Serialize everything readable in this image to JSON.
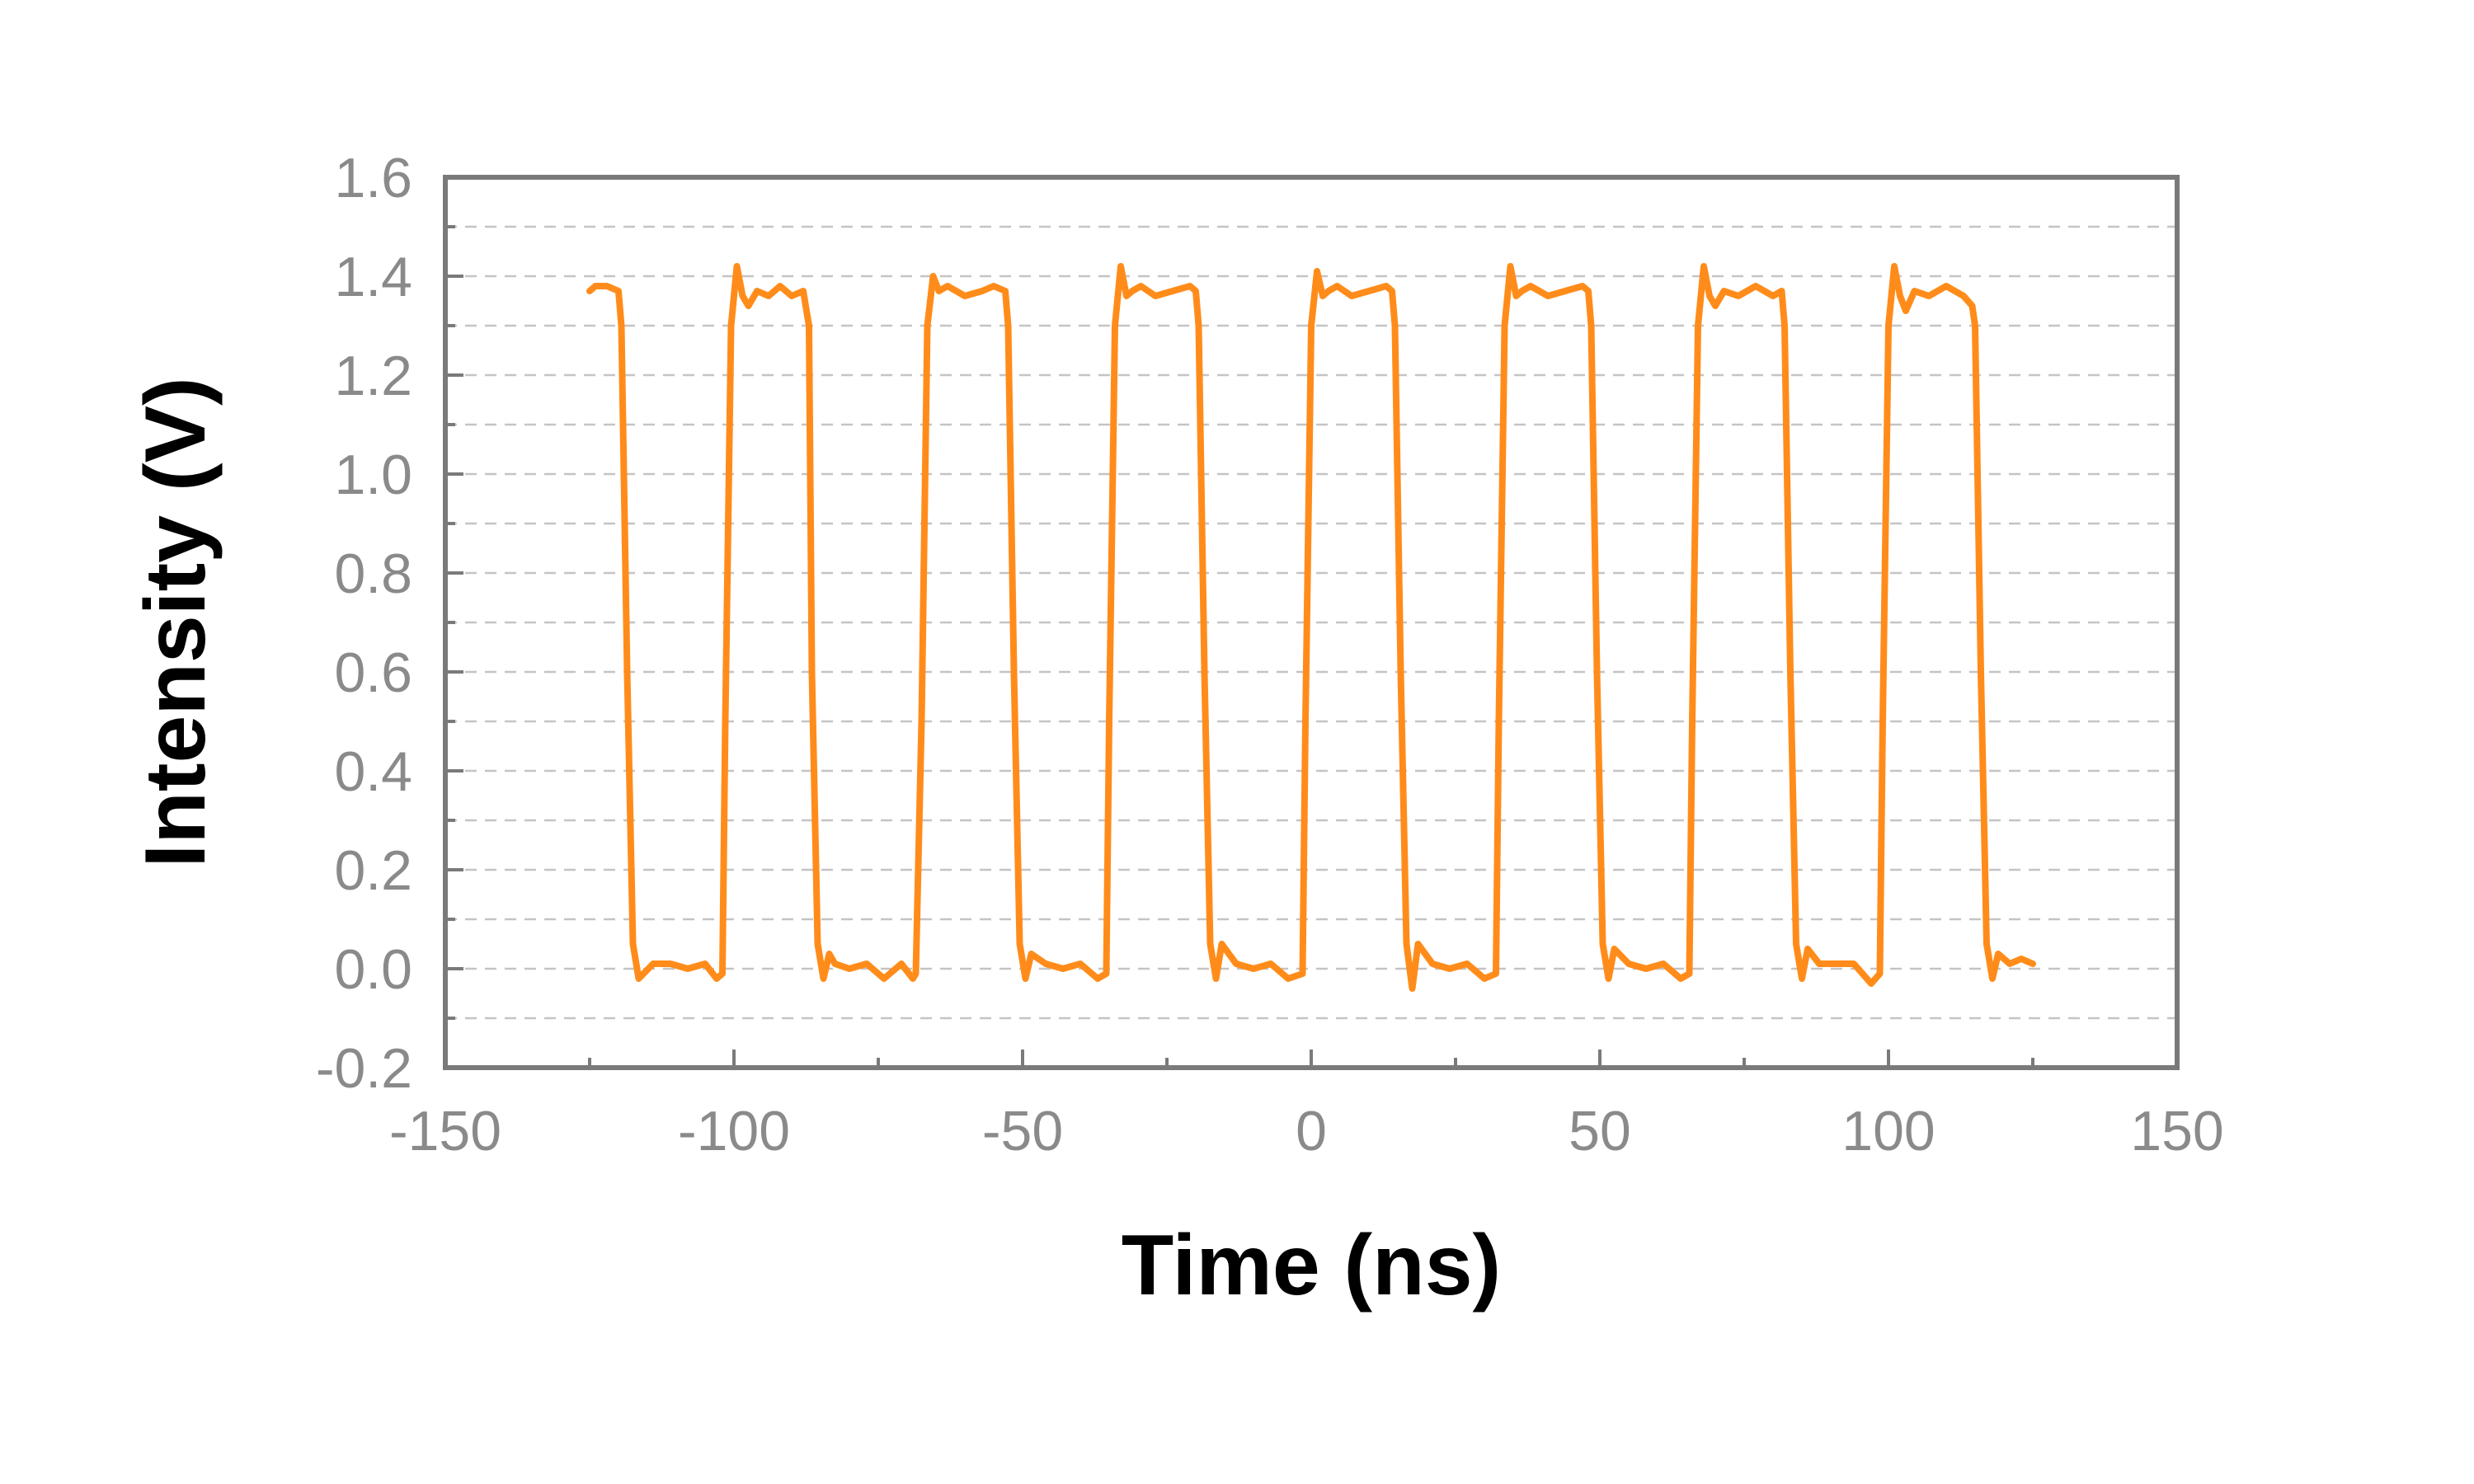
{
  "chart_data": {
    "type": "line",
    "xlabel": "Time (ns)",
    "ylabel": "Intensity (V)",
    "xlim": [
      -150,
      150
    ],
    "ylim": [
      -0.2,
      1.6
    ],
    "x_ticks": [
      "-150",
      "-100",
      "-50",
      "0",
      "50",
      "100",
      "150"
    ],
    "y_ticks": [
      "-0.2",
      "0.0",
      "0.2",
      "0.4",
      "0.6",
      "0.8",
      "1.0",
      "1.2",
      "1.4",
      "1.6"
    ],
    "grid": "dashed horizontal",
    "legend": "none",
    "colors": {
      "series": "#ff8c1a",
      "frame": "#7a7a7a",
      "tick_text": "#8a8a8a",
      "grid": "#c4c4c4"
    },
    "series": [
      {
        "x": [
          -125,
          -124,
          -122,
          -120,
          -119.5,
          -118.5,
          -117.5,
          -116.5,
          -114,
          -111,
          -108,
          -105,
          -103,
          -102,
          -101.5,
          -100.5,
          -99.5,
          -98.5,
          -97.5,
          -96,
          -94,
          -92,
          -90,
          -88,
          -87,
          -86.5,
          -85.5,
          -84.5,
          -83.5,
          -82.5,
          -80,
          -77,
          -74,
          -71,
          -69,
          -68.5,
          -67.5,
          -66.5,
          -65.5,
          -64.5,
          -63,
          -60,
          -57,
          -55,
          -53,
          -52.5,
          -51.5,
          -50.5,
          -49.5,
          -48.5,
          -46,
          -43,
          -40,
          -37,
          -35.5,
          -35,
          -34,
          -33,
          -32,
          -31,
          -29.5,
          -27,
          -24,
          -21,
          -20,
          -19.5,
          -18.5,
          -17.5,
          -16.5,
          -15.5,
          -13,
          -10,
          -7,
          -4,
          -1.5,
          -1,
          0,
          1,
          2,
          3,
          4.5,
          7,
          10,
          13,
          14,
          14.5,
          15.5,
          16.5,
          17.5,
          18.5,
          21,
          24,
          27,
          30,
          32,
          32.5,
          33.5,
          34.5,
          35.5,
          36.5,
          38,
          41,
          44,
          47,
          48,
          48.5,
          49.5,
          50.5,
          51.5,
          52.5,
          55,
          58,
          61,
          64,
          65.5,
          66,
          67,
          68,
          69,
          70,
          71.5,
          74,
          77,
          80,
          81.5,
          82,
          83,
          84,
          85,
          86,
          88,
          91,
          94,
          97,
          98.5,
          99,
          100,
          101,
          102,
          103,
          104.5,
          107,
          110,
          113,
          114.5,
          115,
          116,
          117,
          118,
          119,
          121,
          123,
          125
        ],
        "y": [
          1.37,
          1.38,
          1.38,
          1.37,
          1.3,
          0.6,
          0.05,
          -0.02,
          0.01,
          0.01,
          0.0,
          0.01,
          -0.02,
          -0.01,
          0.5,
          1.3,
          1.42,
          1.36,
          1.34,
          1.37,
          1.36,
          1.38,
          1.36,
          1.37,
          1.3,
          0.6,
          0.05,
          -0.02,
          0.03,
          0.01,
          0.0,
          0.01,
          -0.02,
          0.01,
          -0.02,
          -0.01,
          0.5,
          1.3,
          1.4,
          1.37,
          1.38,
          1.36,
          1.37,
          1.38,
          1.37,
          1.3,
          0.6,
          0.05,
          -0.02,
          0.03,
          0.01,
          0.0,
          0.01,
          -0.02,
          -0.01,
          0.5,
          1.3,
          1.42,
          1.36,
          1.37,
          1.38,
          1.36,
          1.37,
          1.38,
          1.37,
          1.3,
          0.6,
          0.05,
          -0.02,
          0.05,
          0.01,
          0.0,
          0.01,
          -0.02,
          -0.01,
          0.5,
          1.3,
          1.41,
          1.36,
          1.37,
          1.38,
          1.36,
          1.37,
          1.38,
          1.37,
          1.3,
          0.6,
          0.05,
          -0.04,
          0.05,
          0.01,
          0.0,
          0.01,
          -0.02,
          -0.01,
          0.5,
          1.3,
          1.42,
          1.36,
          1.37,
          1.38,
          1.36,
          1.37,
          1.38,
          1.37,
          1.3,
          0.6,
          0.05,
          -0.02,
          0.04,
          0.01,
          0.0,
          0.01,
          -0.02,
          -0.01,
          0.5,
          1.3,
          1.42,
          1.36,
          1.34,
          1.37,
          1.36,
          1.38,
          1.36,
          1.37,
          1.3,
          0.6,
          0.05,
          -0.02,
          0.04,
          0.01,
          0.01,
          0.01,
          -0.03,
          -0.01,
          0.5,
          1.3,
          1.42,
          1.36,
          1.33,
          1.37,
          1.36,
          1.38,
          1.36,
          1.34,
          1.3,
          0.6,
          0.05,
          -0.02,
          0.03,
          0.01,
          0.02,
          0.01
        ]
      }
    ]
  }
}
